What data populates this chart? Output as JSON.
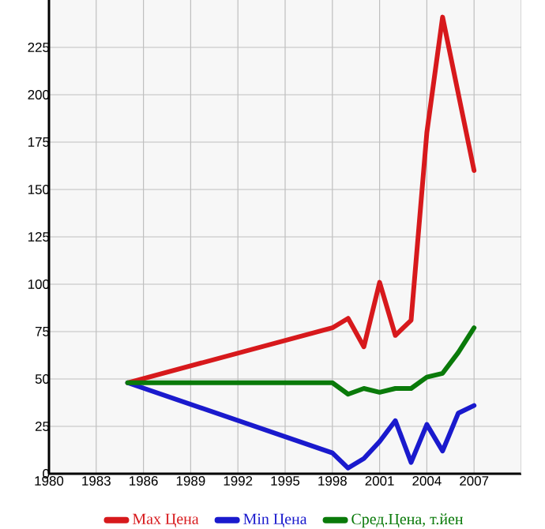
{
  "chart_data": {
    "type": "line",
    "x": [
      1985,
      1998,
      1999,
      2000,
      2001,
      2002,
      2003,
      2004,
      2005,
      2007
    ],
    "series": [
      {
        "name": "Max Цена",
        "color": "#d7191c",
        "values": [
          48,
          77,
          82,
          67,
          101,
          73,
          81,
          180,
          241,
          160
        ]
      },
      {
        "name": "Min Цена",
        "color": "#1a1acd",
        "x": [
          1985,
          1998,
          1999,
          2000,
          2001,
          2002,
          2003,
          2004,
          2005,
          2006,
          2007
        ],
        "values": [
          48,
          11,
          3,
          8,
          17,
          28,
          6,
          26,
          12,
          32,
          36
        ]
      },
      {
        "name": "Сред.Цена, т.йен",
        "color": "#0a7a0a",
        "x": [
          1985,
          1998,
          1999,
          2000,
          2001,
          2002,
          2003,
          2004,
          2005,
          2006,
          2007
        ],
        "values": [
          48,
          48,
          42,
          45,
          43,
          45,
          45,
          51,
          53,
          64,
          77
        ]
      }
    ],
    "xlim": [
      1980,
      2010
    ],
    "xticks": [
      1980,
      1983,
      1986,
      1989,
      1992,
      1995,
      1998,
      2001,
      2004,
      2007
    ],
    "ylim": [
      0,
      250
    ],
    "yticks": [
      0,
      25,
      50,
      75,
      100,
      125,
      150,
      175,
      200,
      225
    ],
    "grid": true,
    "legend": "bottom",
    "marker": "none",
    "line_style": "solid"
  }
}
